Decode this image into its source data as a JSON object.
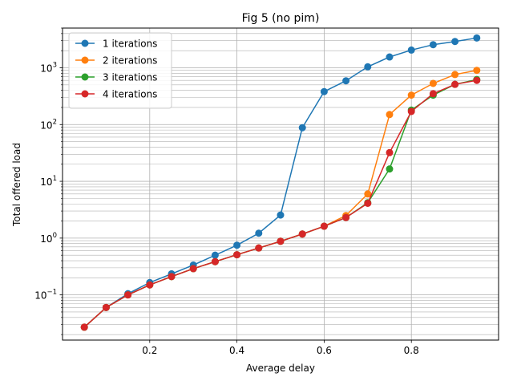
{
  "chart_data": {
    "type": "line",
    "title": "Fig 5 (no pim)",
    "xlabel": "Average delay",
    "ylabel": "Total offered load",
    "xlim": [
      0.0,
      1.0
    ],
    "ylim": [
      0.016,
      5000
    ],
    "yscale": "log",
    "grid": "both (major and minor)",
    "legend_position": "top-left",
    "x_ticks": [
      "0.2",
      "0.4",
      "0.6",
      "0.8"
    ],
    "y_ticks": [
      {
        "base": "10",
        "exp": "−1"
      },
      {
        "base": "10",
        "exp": "0"
      },
      {
        "base": "10",
        "exp": "1"
      },
      {
        "base": "10",
        "exp": "2"
      },
      {
        "base": "10",
        "exp": "3"
      }
    ],
    "x": [
      0.05,
      0.1,
      0.15,
      0.2,
      0.25,
      0.3,
      0.35,
      0.4,
      0.45,
      0.5,
      0.55,
      0.6,
      0.65,
      0.7,
      0.75,
      0.8,
      0.85,
      0.9,
      0.95
    ],
    "series": [
      {
        "name": "1 iterations",
        "color": "#1f77b4",
        "values": [
          0.027,
          0.06,
          0.105,
          0.165,
          0.235,
          0.335,
          0.5,
          0.75,
          1.22,
          2.55,
          88,
          380,
          590,
          1040,
          1550,
          2050,
          2550,
          2900,
          3350
        ]
      },
      {
        "name": "2 iterations",
        "color": "#ff7f0e",
        "values": [
          0.027,
          0.06,
          0.1,
          0.15,
          0.21,
          0.29,
          0.385,
          0.51,
          0.67,
          0.88,
          1.18,
          1.62,
          2.5,
          6.0,
          150,
          330,
          530,
          760,
          900
        ]
      },
      {
        "name": "3 iterations",
        "color": "#2ca02c",
        "values": [
          0.027,
          0.06,
          0.1,
          0.15,
          0.21,
          0.29,
          0.385,
          0.51,
          0.67,
          0.88,
          1.18,
          1.62,
          2.3,
          4.2,
          16.5,
          180,
          330,
          510,
          620
        ]
      },
      {
        "name": "4 iterations",
        "color": "#d62728",
        "values": [
          0.027,
          0.06,
          0.1,
          0.15,
          0.21,
          0.29,
          0.385,
          0.51,
          0.67,
          0.88,
          1.18,
          1.62,
          2.3,
          4.1,
          32,
          170,
          350,
          510,
          600
        ]
      }
    ]
  }
}
